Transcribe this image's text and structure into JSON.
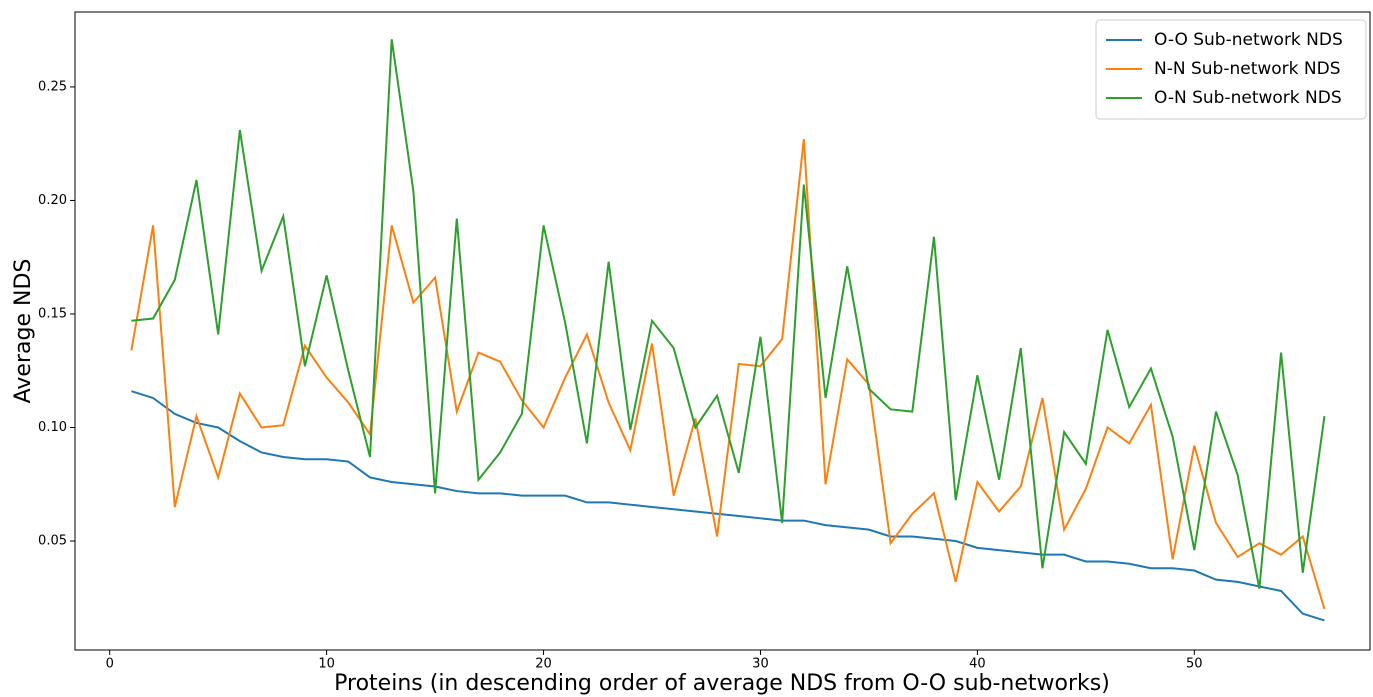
{
  "chart_data": {
    "type": "line",
    "xlabel": "Proteins (in descending order of average NDS from O-O sub-networks)",
    "ylabel": "Average NDS",
    "x": [
      1,
      2,
      3,
      4,
      5,
      6,
      7,
      8,
      9,
      10,
      11,
      12,
      13,
      14,
      15,
      16,
      17,
      18,
      19,
      20,
      21,
      22,
      23,
      24,
      25,
      26,
      27,
      28,
      29,
      30,
      31,
      32,
      33,
      34,
      35,
      36,
      37,
      38,
      39,
      40,
      41,
      42,
      43,
      44,
      45,
      46,
      47,
      48,
      49,
      50,
      51,
      52,
      53,
      54,
      55,
      56
    ],
    "series": [
      {
        "name": "O-O Sub-network NDS",
        "color": "#1f77b4",
        "values": [
          0.116,
          0.113,
          0.106,
          0.102,
          0.1,
          0.094,
          0.089,
          0.087,
          0.086,
          0.086,
          0.085,
          0.078,
          0.076,
          0.075,
          0.074,
          0.072,
          0.071,
          0.071,
          0.07,
          0.07,
          0.07,
          0.067,
          0.067,
          0.066,
          0.065,
          0.064,
          0.063,
          0.062,
          0.061,
          0.06,
          0.059,
          0.059,
          0.057,
          0.056,
          0.055,
          0.052,
          0.052,
          0.051,
          0.05,
          0.047,
          0.046,
          0.045,
          0.044,
          0.044,
          0.041,
          0.041,
          0.04,
          0.038,
          0.038,
          0.037,
          0.033,
          0.032,
          0.03,
          0.028,
          0.018,
          0.015
        ]
      },
      {
        "name": "N-N Sub-network NDS",
        "color": "#ff7f0e",
        "values": [
          0.134,
          0.189,
          0.065,
          0.105,
          0.078,
          0.115,
          0.1,
          0.101,
          0.136,
          0.122,
          0.111,
          0.097,
          0.189,
          0.155,
          0.166,
          0.107,
          0.133,
          0.129,
          0.112,
          0.1,
          0.122,
          0.141,
          0.111,
          0.09,
          0.137,
          0.07,
          0.104,
          0.052,
          0.128,
          0.127,
          0.139,
          0.227,
          0.075,
          0.13,
          0.119,
          0.049,
          0.062,
          0.071,
          0.032,
          0.076,
          0.063,
          0.074,
          0.113,
          0.055,
          0.073,
          0.1,
          0.093,
          0.11,
          0.042,
          0.092,
          0.058,
          0.043,
          0.049,
          0.044,
          0.052,
          0.02
        ]
      },
      {
        "name": "O-N Sub-network NDS",
        "color": "#2ca02c",
        "values": [
          0.147,
          0.148,
          0.165,
          0.209,
          0.141,
          0.231,
          0.169,
          0.193,
          0.127,
          0.167,
          0.125,
          0.087,
          0.271,
          0.204,
          0.071,
          0.192,
          0.077,
          0.089,
          0.106,
          0.189,
          0.146,
          0.093,
          0.173,
          0.099,
          0.147,
          0.135,
          0.1,
          0.114,
          0.08,
          0.14,
          0.058,
          0.207,
          0.113,
          0.171,
          0.117,
          0.108,
          0.107,
          0.184,
          0.068,
          0.123,
          0.077,
          0.135,
          0.038,
          0.098,
          0.084,
          0.143,
          0.109,
          0.126,
          0.096,
          0.046,
          0.107,
          0.079,
          0.029,
          0.133,
          0.036,
          0.105
        ]
      }
    ],
    "xlim": [
      -1.6,
      58.1
    ],
    "ylim": [
      0.002,
      0.283
    ],
    "xticks": [
      0,
      10,
      20,
      30,
      40,
      50
    ],
    "yticks": [
      0.05,
      {
        "value": 0.1,
        "label": "0.10"
      },
      0.15,
      {
        "value": 0.2,
        "label": "0.20"
      },
      0.25
    ],
    "legend": "upper right"
  }
}
